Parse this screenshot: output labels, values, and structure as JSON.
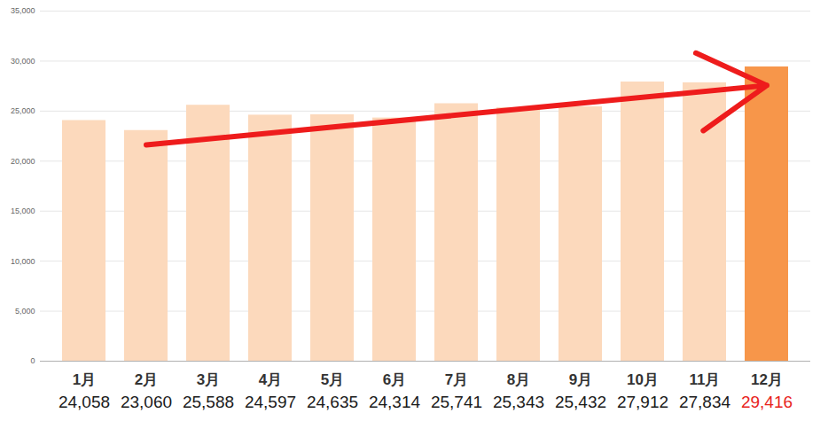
{
  "chart_data": {
    "type": "bar",
    "categories": [
      "1月",
      "2月",
      "3月",
      "4月",
      "5月",
      "6月",
      "7月",
      "8月",
      "9月",
      "10月",
      "11月",
      "12月"
    ],
    "values": [
      24058,
      23060,
      25588,
      24597,
      24635,
      24314,
      25741,
      25343,
      25432,
      27912,
      27834,
      29416
    ],
    "value_labels": [
      "24,058",
      "23,060",
      "25,588",
      "24,597",
      "24,635",
      "24,314",
      "25,741",
      "25,343",
      "25,432",
      "27,912",
      "27,834",
      "29,416"
    ],
    "colors": [
      "#fcd9bc",
      "#fcd9bc",
      "#fcd9bc",
      "#fcd9bc",
      "#fcd9bc",
      "#fcd9bc",
      "#fcd9bc",
      "#fcd9bc",
      "#fcd9bc",
      "#fcd9bc",
      "#fcd9bc",
      "#f7964a"
    ],
    "ylim": [
      0,
      35000
    ],
    "yticks": [
      0,
      {
        "value": 5000,
        "label": "5,000"
      },
      {
        "value": 10000,
        "label": "10,000"
      },
      {
        "value": 15000,
        "label": "15,000"
      },
      {
        "value": 20000,
        "label": "20,000"
      },
      {
        "value": 25000,
        "label": "25,000"
      },
      {
        "value": 30000,
        "label": "30,000"
      },
      {
        "value": 35000,
        "label": "35,000"
      }
    ],
    "grid": true,
    "data_labels": true
  }
}
